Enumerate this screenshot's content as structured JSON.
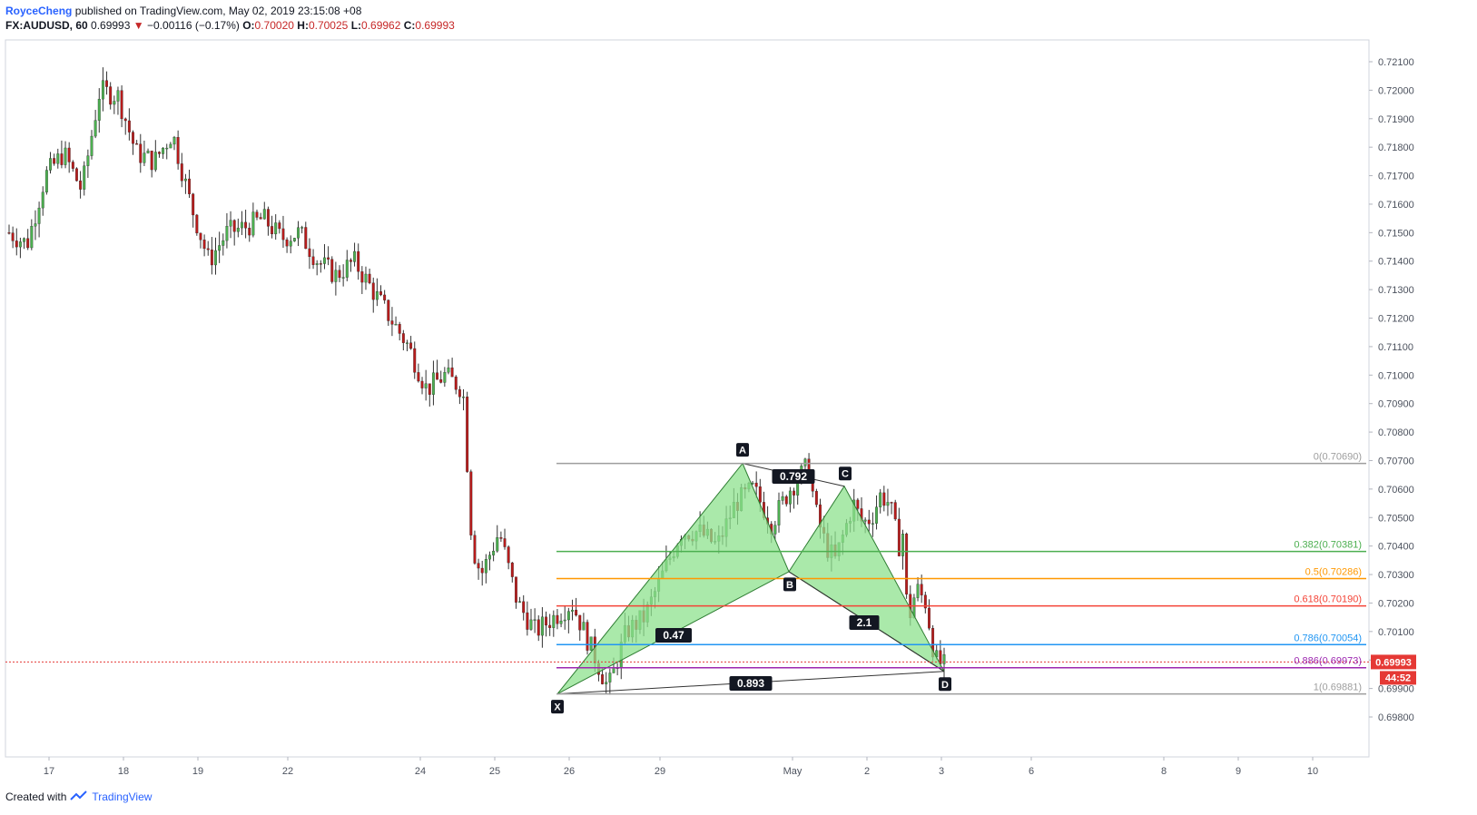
{
  "header": {
    "author": "RoyceCheng",
    "published": "published on TradingView.com, May 02, 2019 23:15:08 +08",
    "symbol": "FX:AUDUSD, 60",
    "last": "0.69993",
    "arrow": "▼",
    "change": "−0.00116 (−0.17%)",
    "open_label": "O:",
    "open": "0.70020",
    "high_label": "H:",
    "high": "0.70025",
    "low_label": "L:",
    "low": "0.69962",
    "close_label": "C:",
    "close": "0.69993"
  },
  "footer": {
    "created_with": "Created with",
    "brand": "TradingView"
  },
  "colors": {
    "up": "#26a69a",
    "down": "#ef5350",
    "candle_body_up": "#4caf50",
    "candle_body_down": "#b71c1c",
    "pattern_fill": "#8ee28e",
    "grid_axis": "#d1d4dc",
    "fib_0": "#9e9e9e",
    "fib_382": "#4caf50",
    "fib_05": "#ff9800",
    "fib_618": "#f44336",
    "fib_786": "#2196f3",
    "fib_886": "#9c27b0",
    "fib_1": "#9e9e9e",
    "price_tag": "#e53935"
  },
  "chart_data": {
    "type": "candlestick",
    "symbol": "FX:AUDUSD",
    "interval": "60",
    "y_range": [
      0.6975,
      0.7215
    ],
    "y_ticks": [
      "0.72100",
      "0.72000",
      "0.71900",
      "0.71800",
      "0.71700",
      "0.71600",
      "0.71500",
      "0.71400",
      "0.71300",
      "0.71200",
      "0.71100",
      "0.71000",
      "0.70900",
      "0.70800",
      "0.70700",
      "0.70600",
      "0.70500",
      "0.70400",
      "0.70300",
      "0.70200",
      "0.70100",
      "0.70000",
      "0.69900",
      "0.69800"
    ],
    "x_ticks": [
      "17",
      "18",
      "19",
      "22",
      "24",
      "25",
      "26",
      "29",
      "May",
      "2",
      "3",
      "6",
      "8",
      "9",
      "10"
    ],
    "price_path": [
      [
        0,
        0.715
      ],
      [
        0.02,
        0.7146
      ],
      [
        0.04,
        0.717
      ],
      [
        0.06,
        0.7178
      ],
      [
        0.08,
        0.7165
      ],
      [
        0.1,
        0.72
      ],
      [
        0.12,
        0.7198
      ],
      [
        0.14,
        0.7178
      ],
      [
        0.16,
        0.7175
      ],
      [
        0.18,
        0.7185
      ],
      [
        0.2,
        0.716
      ],
      [
        0.22,
        0.714
      ],
      [
        0.24,
        0.715
      ],
      [
        0.26,
        0.7152
      ],
      [
        0.28,
        0.7155
      ],
      [
        0.3,
        0.7148
      ],
      [
        0.32,
        0.715
      ],
      [
        0.34,
        0.714
      ],
      [
        0.36,
        0.7135
      ],
      [
        0.38,
        0.714
      ],
      [
        0.4,
        0.713
      ],
      [
        0.42,
        0.712
      ],
      [
        0.44,
        0.711
      ],
      [
        0.46,
        0.7095
      ],
      [
        0.48,
        0.71
      ],
      [
        0.5,
        0.7095
      ],
      [
        0.51,
        0.704
      ],
      [
        0.52,
        0.703
      ],
      [
        0.54,
        0.7045
      ],
      [
        0.56,
        0.702
      ],
      [
        0.58,
        0.701
      ],
      [
        0.6,
        0.7015
      ],
      [
        0.62,
        0.702
      ],
      [
        0.64,
        0.7005
      ],
      [
        0.66,
        0.699
      ],
      [
        0.68,
        0.701
      ],
      [
        0.7,
        0.7015
      ],
      [
        0.72,
        0.703
      ],
      [
        0.74,
        0.7045
      ],
      [
        0.76,
        0.7045
      ],
      [
        0.78,
        0.704
      ],
      [
        0.8,
        0.7055
      ],
      [
        0.82,
        0.706
      ],
      [
        0.84,
        0.7048
      ],
      [
        0.86,
        0.706
      ],
      [
        0.88,
        0.7068
      ],
      [
        0.89,
        0.705
      ],
      [
        0.9,
        0.704
      ],
      [
        0.91,
        0.7035
      ],
      [
        0.92,
        0.7045
      ],
      [
        0.93,
        0.7055
      ],
      [
        0.94,
        0.7048
      ],
      [
        0.95,
        0.705
      ],
      [
        0.96,
        0.7058
      ],
      [
        0.97,
        0.7055
      ],
      [
        0.98,
        0.704
      ],
      [
        0.985,
        0.7045
      ],
      [
        0.99,
        0.7012
      ],
      [
        0.995,
        0.702
      ],
      [
        1.0,
        0.7025
      ],
      [
        1.01,
        0.702
      ],
      [
        1.02,
        0.7
      ],
      [
        1.03,
        0.6998
      ]
    ],
    "harmonic_points": [
      {
        "label": "X",
        "price": 0.69881
      },
      {
        "label": "A",
        "price": 0.7069
      },
      {
        "label": "B",
        "price": 0.7031
      },
      {
        "label": "C",
        "price": 0.7061
      },
      {
        "label": "D",
        "price": 0.6996
      }
    ],
    "ratios": [
      "0.792",
      "0.47",
      "2.1",
      "0.893"
    ],
    "fib_levels": [
      {
        "ratio": "0",
        "price": "0.70690",
        "key": "fib_0"
      },
      {
        "ratio": "0.382",
        "price": "0.70381",
        "key": "fib_382"
      },
      {
        "ratio": "0.5",
        "price": "0.70286",
        "key": "fib_05"
      },
      {
        "ratio": "0.618",
        "price": "0.70190",
        "key": "fib_618"
      },
      {
        "ratio": "0.786",
        "price": "0.70054",
        "key": "fib_786"
      },
      {
        "ratio": "0.886",
        "price": "0.69973",
        "key": "fib_886"
      },
      {
        "ratio": "1",
        "price": "0.69881",
        "key": "fib_1"
      }
    ],
    "last_price": "0.69993",
    "countdown": "44:52"
  }
}
